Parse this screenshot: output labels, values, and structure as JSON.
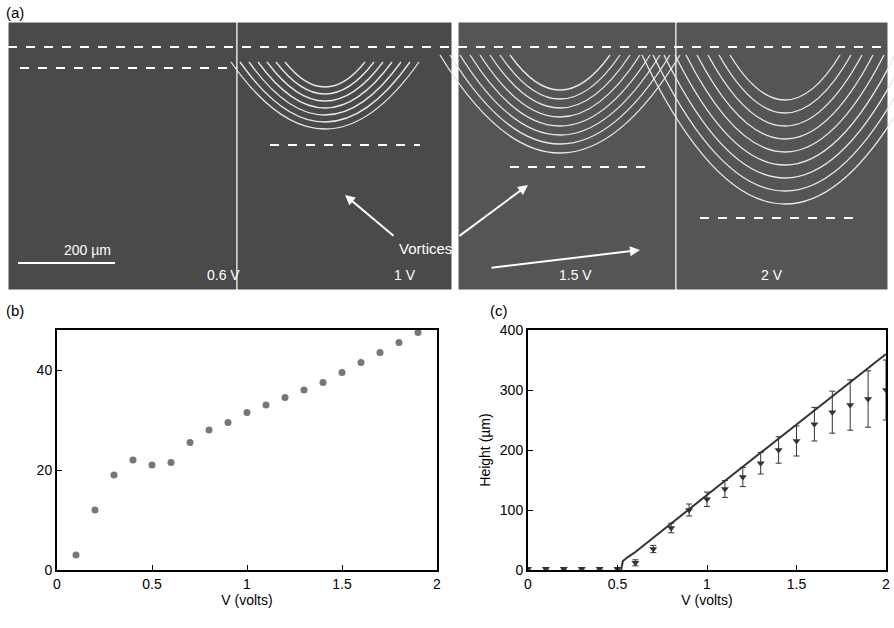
{
  "chart_data": [
    {
      "type": "image",
      "label": "(a)",
      "frames": [
        "0.6 V",
        "1 V",
        "1.5 V",
        "2 V"
      ],
      "scale_bar": "200 µm",
      "annotation": "Vortices"
    },
    {
      "type": "scatter",
      "label": "(b)",
      "xlabel": "V (volts)",
      "x": [
        0.1,
        0.2,
        0.3,
        0.4,
        0.5,
        0.6,
        0.7,
        0.8,
        0.9,
        1.0,
        1.1,
        1.2,
        1.3,
        1.4,
        1.5,
        1.6,
        1.7,
        1.8,
        1.9
      ],
      "values": [
        3,
        12,
        19,
        22,
        21,
        21.5,
        25.5,
        28,
        29.5,
        31.5,
        33,
        34.5,
        36,
        37.5,
        39.5,
        41.5,
        43.5,
        45.5,
        47.5
      ],
      "xlim": [
        0,
        2
      ],
      "xticks": [
        0,
        0.5,
        1,
        1.5,
        2
      ],
      "ylim": [
        0,
        48
      ],
      "yticks": [
        0,
        20,
        40
      ],
      "color": "#777777",
      "marker": "circle"
    },
    {
      "type": "scatter",
      "label": "(c)",
      "xlabel": "V (volts)",
      "ylabel": "Height (µm)",
      "xlim": [
        0,
        2
      ],
      "xticks": [
        0,
        0.5,
        1,
        1.5,
        2
      ],
      "ylim": [
        0,
        400
      ],
      "yticks": [
        0,
        100,
        200,
        300,
        400
      ],
      "series": [
        {
          "type": "scatter",
          "color": "#333333",
          "marker": "triangle-down",
          "x": [
            0,
            0.1,
            0.2,
            0.3,
            0.4,
            0.5,
            0.6,
            0.7,
            0.8,
            0.9,
            1.0,
            1.1,
            1.2,
            1.3,
            1.4,
            1.5,
            1.6,
            1.7,
            1.8,
            1.9,
            2.0
          ],
          "values": [
            2,
            2,
            2,
            2,
            2,
            2,
            12,
            35,
            70,
            100,
            118,
            135,
            155,
            178,
            200,
            215,
            243,
            263,
            275,
            285,
            300
          ],
          "error": [
            2,
            2,
            2,
            2,
            2,
            2,
            5,
            6,
            8,
            10,
            12,
            14,
            16,
            18,
            22,
            25,
            28,
            35,
            42,
            47,
            50
          ]
        },
        {
          "type": "line",
          "color": "#333333",
          "x": [
            0.52,
            0.53,
            0.56,
            0.6,
            1.0,
            1.5,
            2.0
          ],
          "values": [
            0,
            15,
            22,
            30,
            125,
            242,
            360
          ]
        }
      ]
    }
  ]
}
